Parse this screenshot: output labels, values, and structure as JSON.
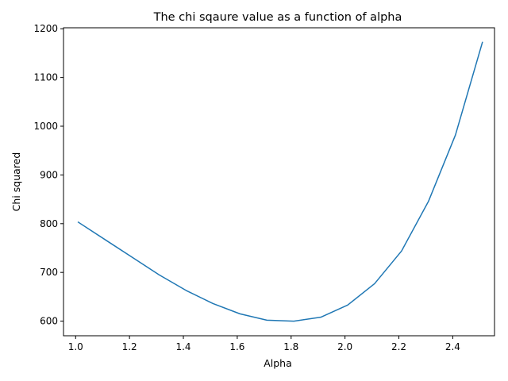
{
  "chart_data": {
    "type": "line",
    "title": "The chi sqaure value as a function of alpha",
    "xlabel": "Alpha",
    "ylabel": "Chi squared",
    "xlim": [
      0.955,
      2.555
    ],
    "ylim": [
      570,
      1202
    ],
    "xticks": [
      1.0,
      1.2,
      1.4,
      1.6,
      1.8,
      2.0,
      2.2,
      2.4
    ],
    "xtick_labels": [
      "1.0",
      "1.2",
      "1.4",
      "1.6",
      "1.8",
      "2.0",
      "2.2",
      "2.4"
    ],
    "yticks": [
      600,
      700,
      800,
      900,
      1000,
      1100,
      1200
    ],
    "ytick_labels": [
      "600",
      "700",
      "800",
      "900",
      "1000",
      "1100",
      "1200"
    ],
    "grid": false,
    "series": [
      {
        "color": "#1f77b4",
        "x": [
          1.01,
          1.11,
          1.21,
          1.31,
          1.41,
          1.51,
          1.61,
          1.71,
          1.81,
          1.91,
          2.01,
          2.11,
          2.21,
          2.31,
          2.41,
          2.51
        ],
        "y": [
          803,
          767,
          731,
          695,
          663,
          636,
          615,
          602,
          600,
          608,
          633,
          677,
          744,
          846,
          982,
          1172
        ]
      }
    ]
  }
}
